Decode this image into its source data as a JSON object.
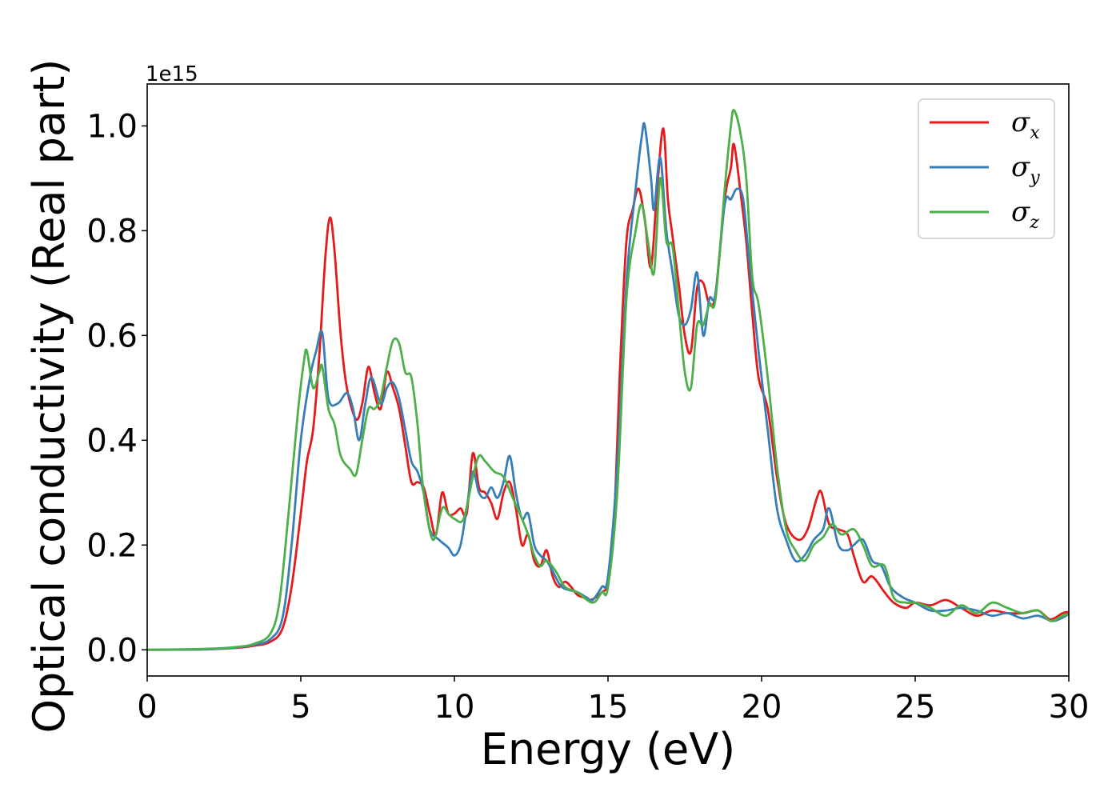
{
  "chart_data": {
    "type": "line",
    "xlabel": "Energy (eV)",
    "ylabel": "Optical conductivity (Real part)",
    "y_offset_label": "1e15",
    "xlim": [
      0,
      30
    ],
    "ylim": [
      -0.05,
      1.08
    ],
    "x_ticks": [
      0,
      5,
      10,
      15,
      20,
      25,
      30
    ],
    "x_tick_labels": [
      "0",
      "5",
      "10",
      "15",
      "20",
      "25",
      "30"
    ],
    "y_ticks": [
      0.0,
      0.2,
      0.4,
      0.6,
      0.8,
      1.0
    ],
    "y_tick_labels": [
      "0.0",
      "0.2",
      "0.4",
      "0.6",
      "0.8",
      "1.0"
    ],
    "grid": false,
    "legend_placement": "top-right",
    "series": [
      {
        "name": "σx",
        "symbol": "σ",
        "subscript": "x",
        "color": "#e41a1c",
        "points": [
          [
            0,
            0
          ],
          [
            2,
            0.001
          ],
          [
            3,
            0.004
          ],
          [
            3.5,
            0.008
          ],
          [
            4,
            0.015
          ],
          [
            4.4,
            0.04
          ],
          [
            4.7,
            0.12
          ],
          [
            5,
            0.26
          ],
          [
            5.2,
            0.36
          ],
          [
            5.4,
            0.42
          ],
          [
            5.6,
            0.56
          ],
          [
            5.8,
            0.75
          ],
          [
            5.95,
            0.825
          ],
          [
            6.1,
            0.76
          ],
          [
            6.3,
            0.6
          ],
          [
            6.5,
            0.5
          ],
          [
            6.8,
            0.44
          ],
          [
            7,
            0.47
          ],
          [
            7.2,
            0.54
          ],
          [
            7.4,
            0.49
          ],
          [
            7.6,
            0.46
          ],
          [
            7.8,
            0.53
          ],
          [
            8,
            0.5
          ],
          [
            8.2,
            0.46
          ],
          [
            8.4,
            0.39
          ],
          [
            8.6,
            0.32
          ],
          [
            8.8,
            0.32
          ],
          [
            9,
            0.31
          ],
          [
            9.2,
            0.26
          ],
          [
            9.4,
            0.22
          ],
          [
            9.6,
            0.3
          ],
          [
            9.8,
            0.26
          ],
          [
            10,
            0.26
          ],
          [
            10.2,
            0.27
          ],
          [
            10.4,
            0.26
          ],
          [
            10.6,
            0.375
          ],
          [
            10.8,
            0.31
          ],
          [
            11,
            0.3
          ],
          [
            11.2,
            0.28
          ],
          [
            11.4,
            0.25
          ],
          [
            11.6,
            0.3
          ],
          [
            11.8,
            0.32
          ],
          [
            12,
            0.27
          ],
          [
            12.2,
            0.2
          ],
          [
            12.4,
            0.22
          ],
          [
            12.6,
            0.17
          ],
          [
            12.8,
            0.16
          ],
          [
            13,
            0.19
          ],
          [
            13.2,
            0.14
          ],
          [
            13.4,
            0.12
          ],
          [
            13.6,
            0.13
          ],
          [
            13.8,
            0.12
          ],
          [
            14,
            0.105
          ],
          [
            14.2,
            0.1
          ],
          [
            14.4,
            0.095
          ],
          [
            14.6,
            0.1
          ],
          [
            14.8,
            0.11
          ],
          [
            15,
            0.13
          ],
          [
            15.2,
            0.25
          ],
          [
            15.4,
            0.55
          ],
          [
            15.6,
            0.78
          ],
          [
            15.8,
            0.84
          ],
          [
            16,
            0.88
          ],
          [
            16.2,
            0.82
          ],
          [
            16.4,
            0.73
          ],
          [
            16.6,
            0.88
          ],
          [
            16.8,
            0.995
          ],
          [
            16.95,
            0.86
          ],
          [
            17.1,
            0.79
          ],
          [
            17.3,
            0.7
          ],
          [
            17.5,
            0.6
          ],
          [
            17.7,
            0.57
          ],
          [
            17.9,
            0.69
          ],
          [
            18.1,
            0.7
          ],
          [
            18.3,
            0.66
          ],
          [
            18.5,
            0.68
          ],
          [
            18.8,
            0.86
          ],
          [
            19,
            0.92
          ],
          [
            19.1,
            0.965
          ],
          [
            19.3,
            0.88
          ],
          [
            19.5,
            0.78
          ],
          [
            19.7,
            0.64
          ],
          [
            19.9,
            0.52
          ],
          [
            20.2,
            0.46
          ],
          [
            20.5,
            0.33
          ],
          [
            20.8,
            0.24
          ],
          [
            21.2,
            0.21
          ],
          [
            21.5,
            0.23
          ],
          [
            21.8,
            0.29
          ],
          [
            21.95,
            0.3
          ],
          [
            22.2,
            0.24
          ],
          [
            22.5,
            0.23
          ],
          [
            22.8,
            0.22
          ],
          [
            23,
            0.18
          ],
          [
            23.3,
            0.13
          ],
          [
            23.6,
            0.14
          ],
          [
            24,
            0.11
          ],
          [
            24.3,
            0.09
          ],
          [
            24.7,
            0.08
          ],
          [
            25,
            0.09
          ],
          [
            25.5,
            0.085
          ],
          [
            26,
            0.095
          ],
          [
            26.5,
            0.08
          ],
          [
            27,
            0.065
          ],
          [
            27.5,
            0.075
          ],
          [
            28,
            0.07
          ],
          [
            28.5,
            0.07
          ],
          [
            29,
            0.075
          ],
          [
            29.4,
            0.058
          ],
          [
            29.8,
            0.07
          ],
          [
            30,
            0.072
          ]
        ]
      },
      {
        "name": "σy",
        "symbol": "σ",
        "subscript": "y",
        "color": "#377eb8",
        "points": [
          [
            0,
            0
          ],
          [
            2,
            0.001
          ],
          [
            3,
            0.005
          ],
          [
            3.5,
            0.01
          ],
          [
            4,
            0.02
          ],
          [
            4.4,
            0.06
          ],
          [
            4.7,
            0.2
          ],
          [
            5,
            0.4
          ],
          [
            5.3,
            0.52
          ],
          [
            5.5,
            0.57
          ],
          [
            5.7,
            0.605
          ],
          [
            5.9,
            0.48
          ],
          [
            6.2,
            0.47
          ],
          [
            6.5,
            0.49
          ],
          [
            6.7,
            0.46
          ],
          [
            6.9,
            0.4
          ],
          [
            7.1,
            0.47
          ],
          [
            7.3,
            0.52
          ],
          [
            7.6,
            0.47
          ],
          [
            7.8,
            0.5
          ],
          [
            8,
            0.51
          ],
          [
            8.2,
            0.48
          ],
          [
            8.4,
            0.42
          ],
          [
            8.6,
            0.36
          ],
          [
            8.8,
            0.34
          ],
          [
            9,
            0.3
          ],
          [
            9.2,
            0.23
          ],
          [
            9.5,
            0.21
          ],
          [
            9.8,
            0.195
          ],
          [
            10,
            0.18
          ],
          [
            10.2,
            0.2
          ],
          [
            10.4,
            0.27
          ],
          [
            10.6,
            0.34
          ],
          [
            10.8,
            0.3
          ],
          [
            11,
            0.29
          ],
          [
            11.2,
            0.31
          ],
          [
            11.4,
            0.29
          ],
          [
            11.6,
            0.32
          ],
          [
            11.8,
            0.37
          ],
          [
            12,
            0.3
          ],
          [
            12.2,
            0.25
          ],
          [
            12.4,
            0.26
          ],
          [
            12.6,
            0.2
          ],
          [
            12.8,
            0.18
          ],
          [
            13,
            0.17
          ],
          [
            13.2,
            0.15
          ],
          [
            13.5,
            0.12
          ],
          [
            14,
            0.11
          ],
          [
            14.3,
            0.1
          ],
          [
            14.5,
            0.095
          ],
          [
            14.8,
            0.12
          ],
          [
            15,
            0.14
          ],
          [
            15.3,
            0.35
          ],
          [
            15.6,
            0.7
          ],
          [
            15.9,
            0.88
          ],
          [
            16.1,
            0.98
          ],
          [
            16.2,
            1.0
          ],
          [
            16.4,
            0.9
          ],
          [
            16.5,
            0.84
          ],
          [
            16.7,
            0.94
          ],
          [
            16.9,
            0.8
          ],
          [
            17.1,
            0.72
          ],
          [
            17.3,
            0.64
          ],
          [
            17.5,
            0.62
          ],
          [
            17.7,
            0.65
          ],
          [
            17.9,
            0.72
          ],
          [
            18.1,
            0.6
          ],
          [
            18.3,
            0.67
          ],
          [
            18.5,
            0.68
          ],
          [
            18.8,
            0.85
          ],
          [
            19,
            0.86
          ],
          [
            19.2,
            0.88
          ],
          [
            19.4,
            0.86
          ],
          [
            19.6,
            0.74
          ],
          [
            19.9,
            0.57
          ],
          [
            20.2,
            0.42
          ],
          [
            20.5,
            0.27
          ],
          [
            20.8,
            0.21
          ],
          [
            21.1,
            0.17
          ],
          [
            21.4,
            0.18
          ],
          [
            21.7,
            0.21
          ],
          [
            22,
            0.23
          ],
          [
            22.2,
            0.27
          ],
          [
            22.5,
            0.2
          ],
          [
            22.8,
            0.19
          ],
          [
            23,
            0.2
          ],
          [
            23.3,
            0.21
          ],
          [
            23.6,
            0.17
          ],
          [
            23.9,
            0.16
          ],
          [
            24.2,
            0.12
          ],
          [
            24.6,
            0.1
          ],
          [
            25,
            0.09
          ],
          [
            25.5,
            0.075
          ],
          [
            26,
            0.075
          ],
          [
            26.5,
            0.08
          ],
          [
            27,
            0.075
          ],
          [
            27.5,
            0.065
          ],
          [
            28,
            0.07
          ],
          [
            28.5,
            0.06
          ],
          [
            29,
            0.065
          ],
          [
            29.5,
            0.055
          ],
          [
            30,
            0.068
          ]
        ]
      },
      {
        "name": "σz",
        "symbol": "σ",
        "subscript": "z",
        "color": "#4daf4a",
        "points": [
          [
            0,
            0
          ],
          [
            2,
            0.002
          ],
          [
            3,
            0.006
          ],
          [
            3.5,
            0.012
          ],
          [
            4,
            0.03
          ],
          [
            4.3,
            0.09
          ],
          [
            4.6,
            0.26
          ],
          [
            4.9,
            0.45
          ],
          [
            5.1,
            0.55
          ],
          [
            5.2,
            0.57
          ],
          [
            5.4,
            0.5
          ],
          [
            5.6,
            0.53
          ],
          [
            5.7,
            0.54
          ],
          [
            5.9,
            0.46
          ],
          [
            6.1,
            0.43
          ],
          [
            6.3,
            0.37
          ],
          [
            6.6,
            0.345
          ],
          [
            6.8,
            0.335
          ],
          [
            7,
            0.4
          ],
          [
            7.2,
            0.46
          ],
          [
            7.4,
            0.46
          ],
          [
            7.6,
            0.48
          ],
          [
            7.8,
            0.54
          ],
          [
            8,
            0.59
          ],
          [
            8.2,
            0.585
          ],
          [
            8.4,
            0.53
          ],
          [
            8.6,
            0.52
          ],
          [
            8.8,
            0.43
          ],
          [
            9,
            0.3
          ],
          [
            9.3,
            0.21
          ],
          [
            9.6,
            0.27
          ],
          [
            9.8,
            0.26
          ],
          [
            10,
            0.25
          ],
          [
            10.3,
            0.25
          ],
          [
            10.6,
            0.33
          ],
          [
            10.8,
            0.37
          ],
          [
            11,
            0.36
          ],
          [
            11.3,
            0.34
          ],
          [
            11.6,
            0.33
          ],
          [
            11.9,
            0.29
          ],
          [
            12.2,
            0.25
          ],
          [
            12.4,
            0.22
          ],
          [
            12.6,
            0.18
          ],
          [
            12.8,
            0.16
          ],
          [
            13,
            0.17
          ],
          [
            13.3,
            0.15
          ],
          [
            13.6,
            0.12
          ],
          [
            14,
            0.11
          ],
          [
            14.5,
            0.09
          ],
          [
            14.8,
            0.11
          ],
          [
            15,
            0.12
          ],
          [
            15.3,
            0.3
          ],
          [
            15.6,
            0.67
          ],
          [
            15.9,
            0.8
          ],
          [
            16.1,
            0.85
          ],
          [
            16.3,
            0.78
          ],
          [
            16.5,
            0.72
          ],
          [
            16.7,
            0.9
          ],
          [
            16.9,
            0.78
          ],
          [
            17.1,
            0.77
          ],
          [
            17.3,
            0.65
          ],
          [
            17.5,
            0.53
          ],
          [
            17.7,
            0.5
          ],
          [
            17.9,
            0.62
          ],
          [
            18.1,
            0.62
          ],
          [
            18.3,
            0.66
          ],
          [
            18.5,
            0.67
          ],
          [
            18.8,
            0.88
          ],
          [
            19,
            1.0
          ],
          [
            19.1,
            1.03
          ],
          [
            19.3,
            0.99
          ],
          [
            19.5,
            0.9
          ],
          [
            19.7,
            0.71
          ],
          [
            19.9,
            0.66
          ],
          [
            20.2,
            0.52
          ],
          [
            20.5,
            0.35
          ],
          [
            20.8,
            0.23
          ],
          [
            21.1,
            0.19
          ],
          [
            21.4,
            0.17
          ],
          [
            21.7,
            0.2
          ],
          [
            22,
            0.215
          ],
          [
            22.3,
            0.24
          ],
          [
            22.6,
            0.22
          ],
          [
            23,
            0.23
          ],
          [
            23.3,
            0.2
          ],
          [
            23.6,
            0.16
          ],
          [
            24,
            0.16
          ],
          [
            24.3,
            0.1
          ],
          [
            24.7,
            0.09
          ],
          [
            25,
            0.09
          ],
          [
            25.5,
            0.08
          ],
          [
            26,
            0.065
          ],
          [
            26.5,
            0.085
          ],
          [
            27,
            0.07
          ],
          [
            27.5,
            0.09
          ],
          [
            28,
            0.08
          ],
          [
            28.5,
            0.07
          ],
          [
            29,
            0.075
          ],
          [
            29.4,
            0.055
          ],
          [
            29.8,
            0.065
          ],
          [
            30,
            0.068
          ]
        ]
      }
    ]
  }
}
